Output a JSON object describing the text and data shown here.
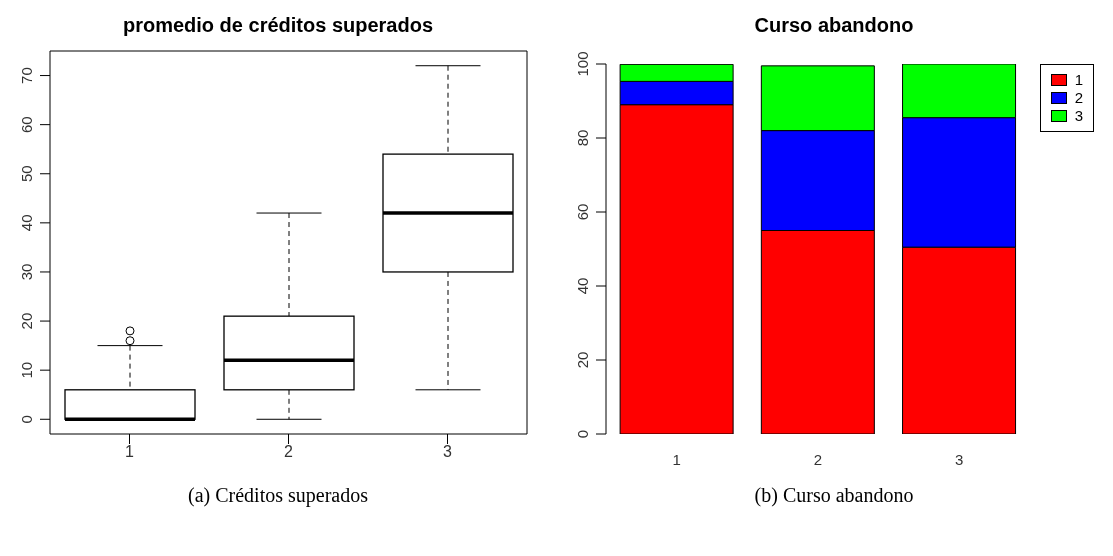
{
  "chart_data": [
    {
      "type": "box",
      "title": "promedio de créditos superados",
      "categories": [
        "1",
        "2",
        "3"
      ],
      "boxes": [
        {
          "low": 0,
          "q1": 0,
          "median": 0,
          "q3": 6,
          "high": 15,
          "outliers": [
            16,
            18
          ]
        },
        {
          "low": 0,
          "q1": 6,
          "median": 12,
          "q3": 21,
          "high": 42
        },
        {
          "low": 6,
          "q1": 30,
          "median": 42,
          "q3": 54,
          "high": 72
        }
      ],
      "ylim": [
        -3,
        75
      ],
      "yticks": [
        0,
        10,
        20,
        30,
        40,
        50,
        60,
        70
      ],
      "annotations": [
        "(a) Créditos superados"
      ]
    },
    {
      "type": "bar",
      "title": "Curso abandono",
      "categories": [
        "1",
        "2",
        "3"
      ],
      "stacked": true,
      "legend": "right",
      "series": [
        {
          "name": "1",
          "color": "#ff0000",
          "values": [
            89,
            55,
            50.5
          ]
        },
        {
          "name": "2",
          "color": "#0000ff",
          "values": [
            6.3,
            27,
            35
          ]
        },
        {
          "name": "3",
          "color": "#00ff00",
          "values": [
            4.6,
            17.5,
            14.5
          ]
        }
      ],
      "ylim": [
        0,
        100
      ],
      "yticks": [
        0,
        20,
        40,
        60,
        80,
        100
      ],
      "annotations": [
        "(b) Curso abandono"
      ]
    }
  ]
}
